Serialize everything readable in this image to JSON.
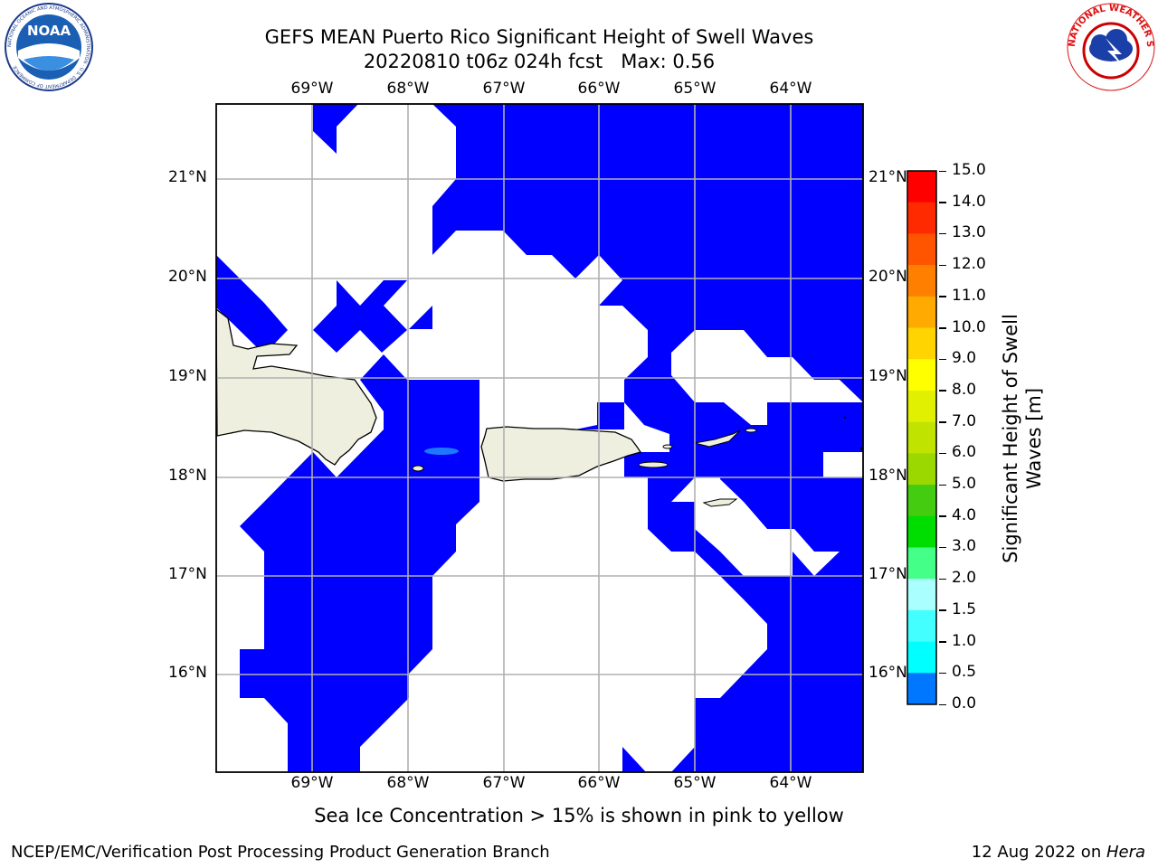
{
  "title": {
    "line1": "GEFS MEAN Puerto Rico Significant Height of Swell Waves",
    "line2": "20220810 t06z 024h fcst   Max: 0.56"
  },
  "map": {
    "lon_labels": [
      "69°W",
      "68°W",
      "67°W",
      "66°W",
      "65°W",
      "64°W"
    ],
    "lat_labels": [
      "21°N",
      "20°N",
      "19°N",
      "18°N",
      "17°N",
      "16°N"
    ],
    "colors": {
      "swell_low": "#0000ff",
      "swell_mid": "#1e78ff",
      "land": "#efefe0",
      "grid": "#b0b0b0"
    }
  },
  "colorbar": {
    "label_line1": "Significant Height of Swell",
    "label_line2": "Waves [m]",
    "ticks": [
      "15.0",
      "14.0",
      "13.0",
      "12.0",
      "11.0",
      "10.0",
      "9.0",
      "8.0",
      "7.0",
      "6.0",
      "5.0",
      "4.0",
      "3.0",
      "2.0",
      "1.5",
      "1.0",
      "0.5",
      "0.0"
    ],
    "colors": [
      "#ff0000",
      "#ff2a00",
      "#ff5500",
      "#ff8000",
      "#ffaa00",
      "#ffd400",
      "#ffff00",
      "#e0f000",
      "#c0e400",
      "#9ad800",
      "#44cc11",
      "#00dd00",
      "#44ff88",
      "#aaffff",
      "#44ffff",
      "#00ffff",
      "#0077ff",
      "#0000ff"
    ]
  },
  "note": "Sea Ice Concentration > 15% is shown in pink to yellow",
  "footer": {
    "left": "NCEP/EMC/Verification Post Processing Product Generation Branch",
    "right_date": "12 Aug 2022 on ",
    "right_host": "Hera"
  },
  "logos": {
    "noaa": "NOAA",
    "noaa_ring": "NATIONAL OCEANIC AND ATMOSPHERIC ADMINISTRATION · U.S. DEPARTMENT OF COMMERCE",
    "nws_ring": "NATIONAL WEATHER SERVICE"
  }
}
